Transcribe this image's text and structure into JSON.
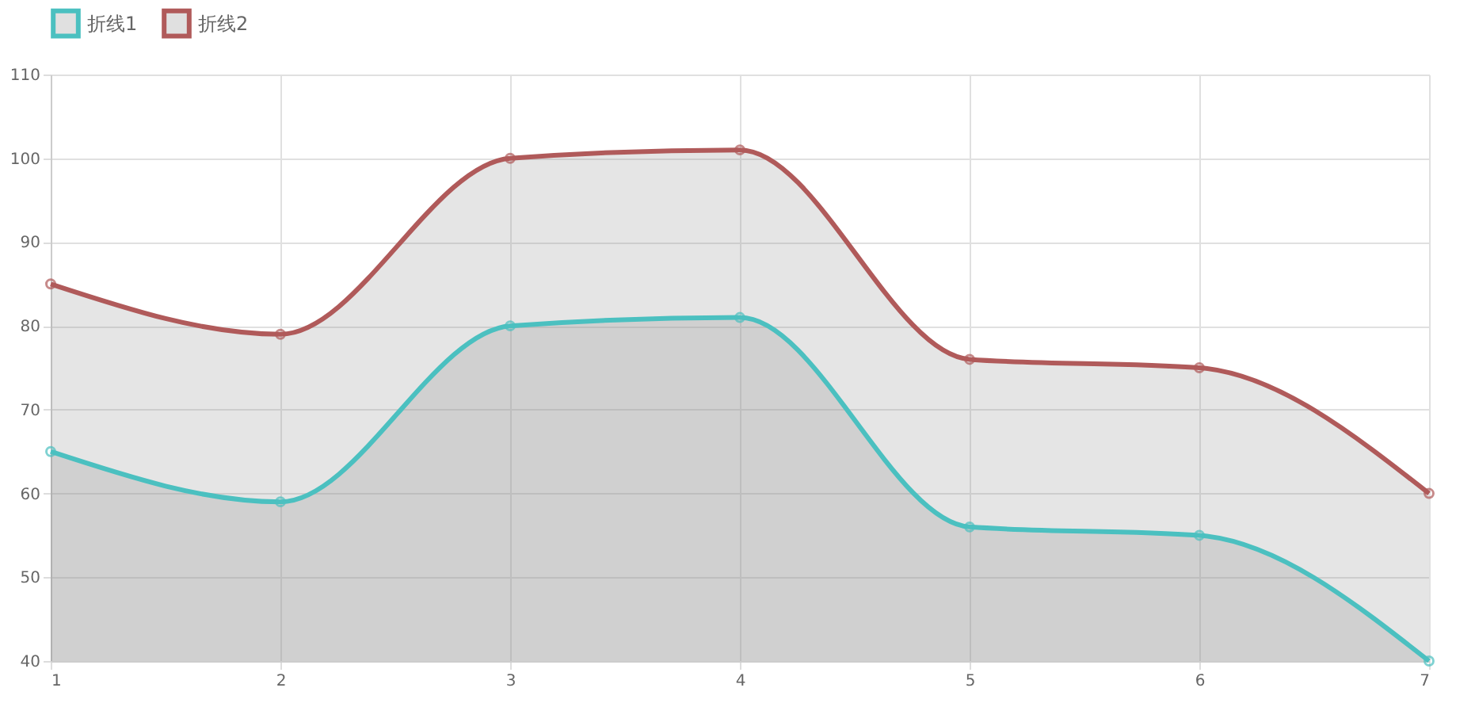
{
  "chart_data": {
    "type": "area",
    "categories": [
      "1",
      "2",
      "3",
      "4",
      "5",
      "6",
      "7"
    ],
    "series": [
      {
        "name": "折线1",
        "color": "#4bc0c0",
        "values": [
          65,
          59,
          80,
          81,
          56,
          55,
          40
        ]
      },
      {
        "name": "折线2",
        "color": "#b05a5a",
        "values": [
          85,
          79,
          100,
          101,
          76,
          75,
          60
        ]
      }
    ],
    "ylim": [
      40,
      110
    ],
    "yticks": [
      40,
      50,
      60,
      70,
      80,
      90,
      100,
      110
    ],
    "grid": true,
    "legend": "top",
    "marker": "circle",
    "line_style": "solid"
  }
}
